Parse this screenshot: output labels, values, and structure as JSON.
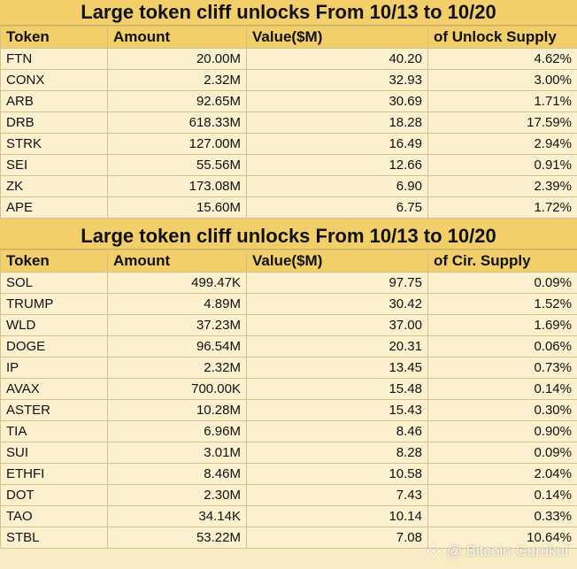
{
  "table1": {
    "title": "Large token cliff unlocks From  10/13 to 10/20",
    "headers": [
      "Token",
      "Amount",
      "Value($M)",
      "of Unlock Supply"
    ],
    "rows": [
      [
        "FTN",
        "20.00M",
        "40.20",
        "4.62%"
      ],
      [
        "CONX",
        "2.32M",
        "32.93",
        "3.00%"
      ],
      [
        "ARB",
        "92.65M",
        "30.69",
        "1.71%"
      ],
      [
        "DRB",
        "618.33M",
        "18.28",
        "17.59%"
      ],
      [
        "STRK",
        "127.00M",
        "16.49",
        "2.94%"
      ],
      [
        "SEI",
        "55.56M",
        "12.66",
        "0.91%"
      ],
      [
        "ZK",
        "173.08M",
        "6.90",
        "2.39%"
      ],
      [
        "APE",
        "15.60M",
        "6.75",
        "1.72%"
      ]
    ]
  },
  "table2": {
    "title": "Large token cliff unlocks From  10/13 to 10/20",
    "headers": [
      "Token",
      "Amount",
      "Value($M)",
      "of Cir. Supply"
    ],
    "rows": [
      [
        "SOL",
        "499.47K",
        "97.75",
        "0.09%"
      ],
      [
        "TRUMP",
        "4.89M",
        "30.42",
        "1.52%"
      ],
      [
        "WLD",
        "37.23M",
        "37.00",
        "1.69%"
      ],
      [
        "DOGE",
        "96.54M",
        "20.31",
        "0.06%"
      ],
      [
        "IP",
        "2.32M",
        "13.45",
        "0.73%"
      ],
      [
        "AVAX",
        "700.00K",
        "15.48",
        "0.14%"
      ],
      [
        "ASTER",
        "10.28M",
        "15.43",
        "0.30%"
      ],
      [
        "TIA",
        "6.96M",
        "8.46",
        "0.90%"
      ],
      [
        "SUI",
        "3.01M",
        "8.28",
        "0.09%"
      ],
      [
        "ETHFI",
        "8.46M",
        "10.58",
        "2.04%"
      ],
      [
        "DOT",
        "2.30M",
        "7.43",
        "0.14%"
      ],
      [
        "TAO",
        "34.14K",
        "10.14",
        "0.33%"
      ],
      [
        "STBL",
        "53.22M",
        "7.08",
        "10.64%"
      ]
    ]
  },
  "watermark": {
    "text": "@ Bitcoin Gurukul",
    "icon": "binance-square-icon"
  }
}
